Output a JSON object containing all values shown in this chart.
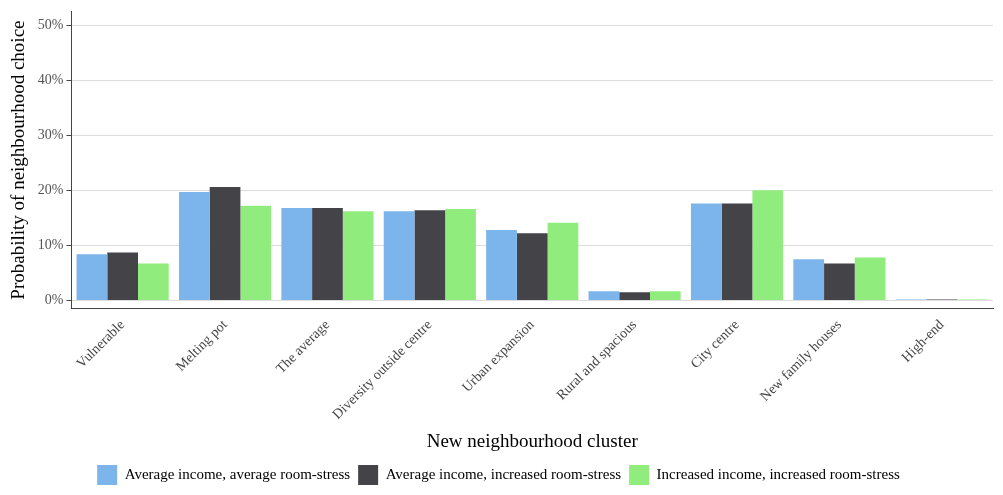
{
  "chart_data": {
    "type": "bar",
    "xlabel": "New neighbourhood cluster",
    "ylabel": "Probability of neighbourhood choice",
    "categories": [
      "Vulnerable",
      "Melting pot",
      "The average",
      "Diversity outside centre",
      "Urban expansion",
      "Rural and spacious",
      "City centre",
      "New family houses",
      "High-end"
    ],
    "series": [
      {
        "name": "Average income, average room-stress",
        "color": "#7cb5ec",
        "values": [
          8.4,
          19.7,
          16.8,
          16.2,
          12.8,
          1.7,
          17.6,
          7.5,
          0.2
        ]
      },
      {
        "name": "Average income, increased room-stress",
        "color": "#434348",
        "values": [
          8.7,
          20.6,
          16.8,
          16.4,
          12.2,
          1.5,
          17.6,
          6.7,
          0.2
        ]
      },
      {
        "name": "Increased income, increased room-stress",
        "color": "#90ed7d",
        "values": [
          6.7,
          17.2,
          16.2,
          16.6,
          14.1,
          1.7,
          20.0,
          7.8,
          0.2
        ]
      }
    ],
    "ylim": [
      -1.5,
      52.5
    ],
    "yticks": [
      {
        "value": 0,
        "label": "0%"
      },
      {
        "value": 10,
        "label": "10%"
      },
      {
        "value": 20,
        "label": "20%"
      },
      {
        "value": 30,
        "label": "30%"
      },
      {
        "value": 40,
        "label": "40%"
      },
      {
        "value": 50,
        "label": "50%"
      }
    ],
    "grid": "y",
    "legend": "bottom"
  }
}
